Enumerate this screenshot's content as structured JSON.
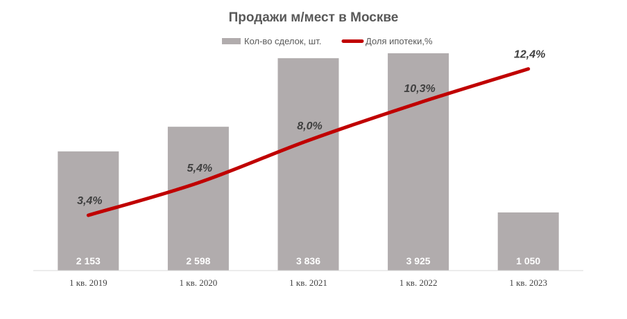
{
  "chart_data": {
    "type": "bar",
    "title": "Продажи м/мест в Москве",
    "categories": [
      "1 кв. 2019",
      "1 кв. 2020",
      "1 кв. 2021",
      "1 кв. 2022",
      "1 кв. 2023"
    ],
    "series": [
      {
        "name": "Кол-во сделок, шт.",
        "type": "bar",
        "color": "#b1acad",
        "values": [
          2153,
          2598,
          3836,
          3925,
          1050
        ],
        "labels": [
          "2 153",
          "2 598",
          "3 836",
          "3 925",
          "1 050"
        ]
      },
      {
        "name": "Доля ипотеки,%",
        "type": "line",
        "color": "#c00000",
        "values": [
          3.4,
          5.4,
          8.0,
          10.3,
          12.4
        ],
        "labels": [
          "3,4%",
          "5,4%",
          "8,0%",
          "10,3%",
          "12,4%"
        ]
      }
    ],
    "ylim": [
      0,
      4200
    ],
    "y2lim": [
      0,
      14
    ],
    "legend_position": "top",
    "grid": false
  }
}
